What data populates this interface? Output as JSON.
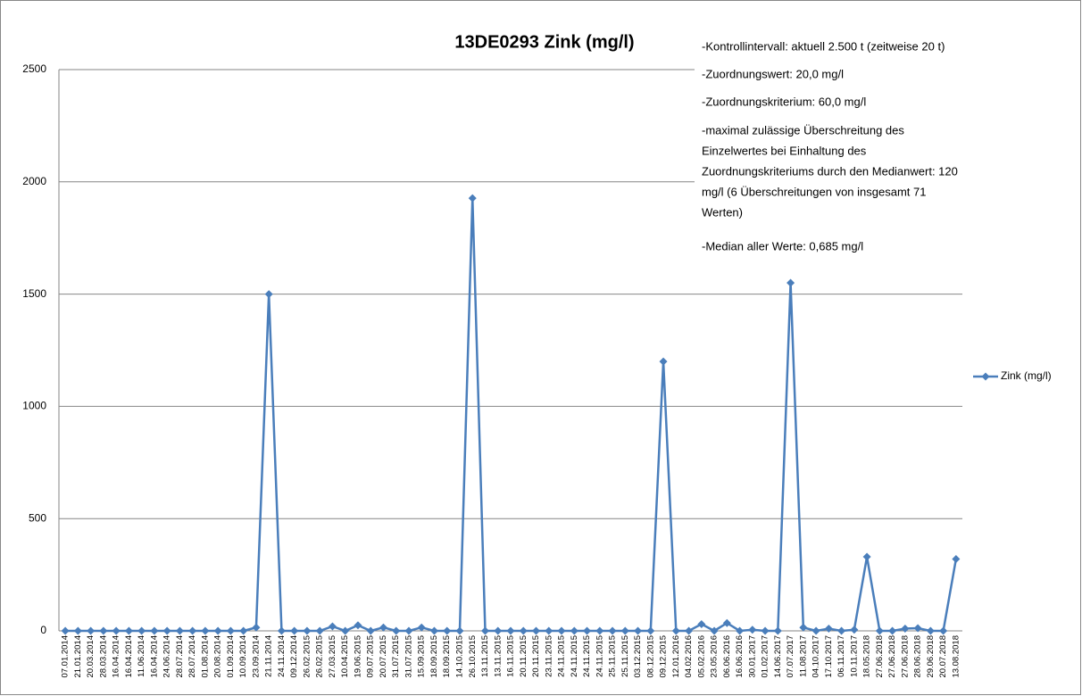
{
  "chart_data": {
    "type": "line",
    "title": "13DE0293 Zink (mg/l)",
    "categories": [
      "07.01.2014",
      "21.01.2014",
      "20.03.2014",
      "28.03.2014",
      "16.04.2014",
      "16.04.2014",
      "11.06.2014",
      "16.04.2014",
      "24.06.2014",
      "28.07.2014",
      "28.07.2014",
      "01.08.2014",
      "20.08.2014",
      "01.09.2014",
      "10.09.2014",
      "23.09.2014",
      "21.11.2014",
      "24.11.2014",
      "09.12.2014",
      "26.02.2015",
      "26.02.2015",
      "27.03.2015",
      "10.04.2015",
      "19.06.2015",
      "09.07.2015",
      "20.07.2015",
      "31.07.2015",
      "31.07.2015",
      "15.09.2015",
      "18.09.2015",
      "18.09.2015",
      "14.10.2015",
      "26.10.2015",
      "13.11.2015",
      "13.11.2015",
      "16.11.2015",
      "20.11.2015",
      "20.11.2015",
      "23.11.2015",
      "24.11.2015",
      "24.11.2015",
      "24.11.2015",
      "24.11.2015",
      "25.11.2015",
      "25.11.2015",
      "03.12.2015",
      "08.12.2015",
      "09.12.2015",
      "12.01.2016",
      "04.02.2016",
      "05.02.2016",
      "23.05.2016",
      "06.06.2016",
      "16.06.2016",
      "30.01.2017",
      "01.02.2017",
      "14.06.2017",
      "07.07.2017",
      "11.08.2017",
      "04.10.2017",
      "17.10.2017",
      "06.11.2017",
      "10.11.2017",
      "18.05.2018",
      "27.06.2018",
      "27.06.2018",
      "27.06.2018",
      "28.06.2018",
      "29.06.2018",
      "20.07.2018",
      "13.08.2018"
    ],
    "series": [
      {
        "name": "Zink (mg/l)",
        "color": "#4a7ebb",
        "values": [
          0,
          0,
          0,
          0,
          0,
          0,
          0,
          0,
          0,
          0,
          0,
          0,
          0,
          0,
          0,
          15,
          1500,
          0,
          0,
          0,
          0,
          20,
          0,
          25,
          0,
          15,
          0,
          0,
          15,
          0,
          0,
          0,
          1927,
          0,
          0,
          0,
          0,
          0,
          0,
          0,
          0,
          0,
          0,
          0,
          0,
          0,
          0,
          1200,
          0,
          0,
          30,
          0,
          35,
          0,
          5,
          0,
          0,
          1550,
          15,
          0,
          10,
          0,
          5,
          330,
          0,
          0,
          10,
          12,
          0,
          0,
          320
        ]
      }
    ],
    "ylim": [
      0,
      2500
    ],
    "yticks": [
      0,
      500,
      1000,
      1500,
      2000,
      2500
    ],
    "grid": true,
    "legend": "right",
    "annotations": [
      "-Kontrollintervall: aktuell 2.500 t (zeitweise 20 t)",
      "-Zuordnungswert: 20,0 mg/l",
      "-Zuordnungskriterium: 60,0 mg/l",
      "-maximal zulässige Überschreitung des",
      "Einzelwertes bei Einhaltung des",
      "Zuordnungskriteriums durch den Medianwert: 120",
      "mg/l (6 Überschreitungen von insgesamt 71",
      "Werten)",
      "-Median aller Werte: 0,685 mg/l"
    ]
  }
}
